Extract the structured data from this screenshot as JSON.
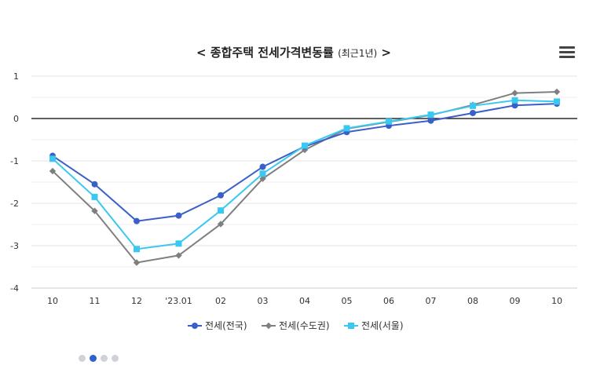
{
  "chart_data": {
    "type": "line",
    "title": "< 종합주택 전세가격변동률",
    "title_suffix": "(최근1년)",
    "title_end": ">",
    "categories": [
      "10",
      "11",
      "12",
      "'23.01",
      "02",
      "03",
      "04",
      "05",
      "06",
      "07",
      "08",
      "09",
      "10"
    ],
    "yticks": [
      1,
      0,
      -1,
      -2,
      -3,
      -4
    ],
    "ylim": [
      -4,
      1
    ],
    "grid": true,
    "legend_position": "bottom-center",
    "series": [
      {
        "name": "전세(전국)",
        "color": "#3a5fc8",
        "marker": "circle",
        "values": [
          -0.88,
          -1.55,
          -2.42,
          -2.29,
          -1.81,
          -1.14,
          -0.66,
          -0.32,
          -0.17,
          -0.05,
          0.13,
          0.31,
          0.35
        ]
      },
      {
        "name": "전세(수도권)",
        "color": "#7f7f7f",
        "marker": "diamond",
        "values": [
          -1.24,
          -2.18,
          -3.4,
          -3.23,
          -2.49,
          -1.42,
          -0.74,
          -0.24,
          -0.08,
          0.08,
          0.32,
          0.6,
          0.63
        ]
      },
      {
        "name": "전세(서울)",
        "color": "#3bc8f0",
        "marker": "square",
        "values": [
          -0.95,
          -1.85,
          -3.08,
          -2.95,
          -2.17,
          -1.3,
          -0.64,
          -0.23,
          -0.07,
          0.09,
          0.3,
          0.43,
          0.4
        ]
      }
    ]
  },
  "menu": {
    "icon": "hamburger-menu-icon"
  },
  "pager": {
    "count": 4,
    "active_index": 1
  }
}
